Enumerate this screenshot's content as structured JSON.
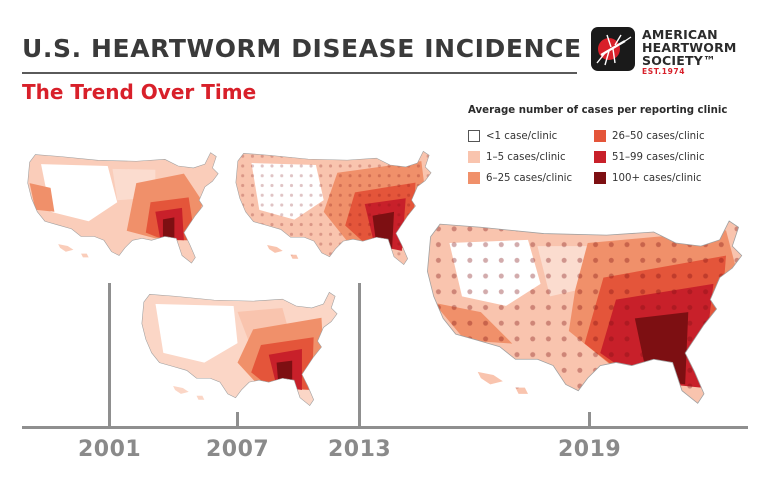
{
  "header": {
    "title": "U.S. HEARTWORM DISEASE INCIDENCE",
    "subtitle": "The Trend Over Time"
  },
  "organization": {
    "name_line1": "AMERICAN",
    "name_line2": "HEARTWORM",
    "name_line3": "SOCIETY™",
    "established": "EST.1974",
    "logo_icon": "mosquito-icon"
  },
  "legend": {
    "title": "Average number of cases per reporting clinic",
    "items": [
      {
        "label": "<1 case/clinic",
        "color": "#ffffff"
      },
      {
        "label": "1–5 cases/clinic",
        "color": "#f9c4ae"
      },
      {
        "label": "6–25 cases/clinic",
        "color": "#f0906a"
      },
      {
        "label": "26–50 cases/clinic",
        "color": "#e4553a"
      },
      {
        "label": "51–99 cases/clinic",
        "color": "#c8202a"
      },
      {
        "label": "100+ cases/clinic",
        "color": "#7d0f12"
      }
    ]
  },
  "timeline": {
    "years": [
      "2001",
      "2007",
      "2013",
      "2019"
    ]
  }
}
